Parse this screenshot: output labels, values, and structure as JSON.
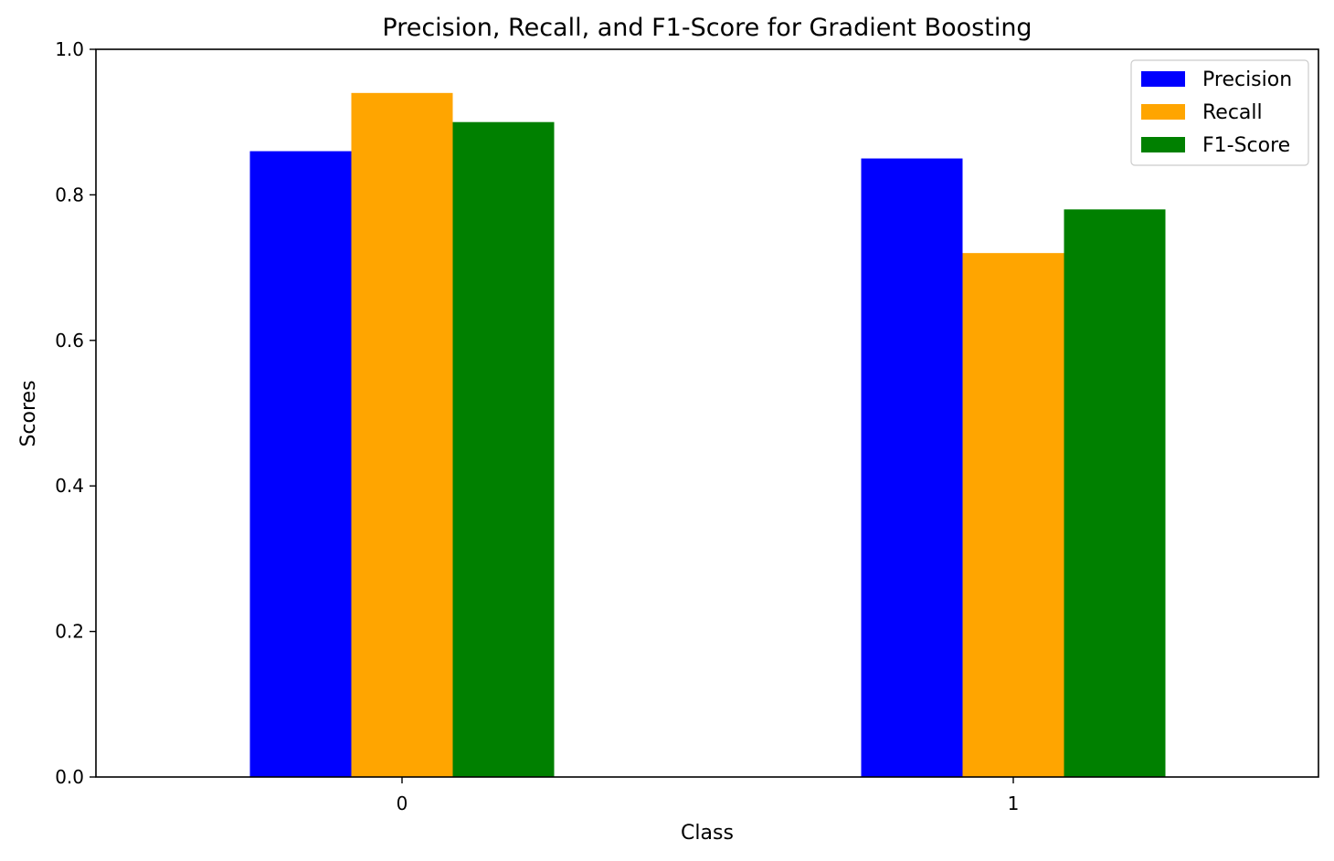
{
  "chart_data": {
    "type": "bar",
    "title": "Precision, Recall, and F1-Score for Gradient Boosting",
    "xlabel": "Class",
    "ylabel": "Scores",
    "categories": [
      "0",
      "1"
    ],
    "series": [
      {
        "name": "Precision",
        "color": "#0000ff",
        "values": [
          0.86,
          0.85
        ]
      },
      {
        "name": "Recall",
        "color": "#ffa500",
        "values": [
          0.94,
          0.72
        ]
      },
      {
        "name": "F1-Score",
        "color": "#008000",
        "values": [
          0.9,
          0.78
        ]
      }
    ],
    "ylim": [
      0,
      1.0
    ],
    "yticks": [
      "0.0",
      "0.2",
      "0.4",
      "0.6",
      "0.8",
      "1.0"
    ],
    "grid": false,
    "legend_position": "top-right"
  }
}
